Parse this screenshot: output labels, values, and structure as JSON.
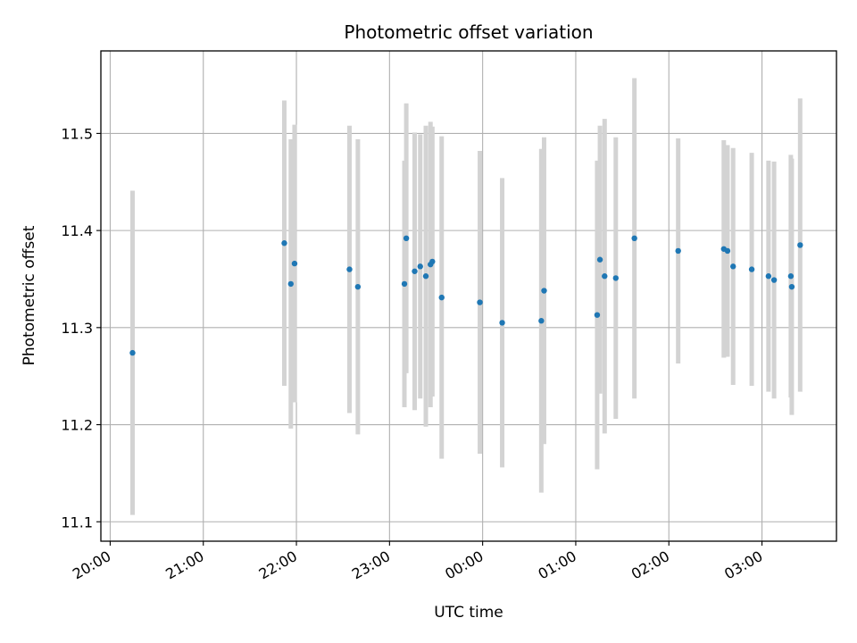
{
  "chart_data": {
    "type": "scatter",
    "title": "Photometric offset variation",
    "xlabel": "UTC time",
    "ylabel": "Photometric offset",
    "x_unit": "hours after 20:00 UTC",
    "xlim": [
      -0.1,
      7.8
    ],
    "ylim": [
      11.08,
      11.585
    ],
    "x_ticks": [
      {
        "value": 0,
        "label": "20:00"
      },
      {
        "value": 1,
        "label": "21:00"
      },
      {
        "value": 2,
        "label": "22:00"
      },
      {
        "value": 3,
        "label": "23:00"
      },
      {
        "value": 4,
        "label": "00:00"
      },
      {
        "value": 5,
        "label": "01:00"
      },
      {
        "value": 6,
        "label": "02:00"
      },
      {
        "value": 7,
        "label": "03:00"
      }
    ],
    "y_ticks": [
      {
        "value": 11.1,
        "label": "11.1"
      },
      {
        "value": 11.2,
        "label": "11.2"
      },
      {
        "value": 11.3,
        "label": "11.3"
      },
      {
        "value": 11.4,
        "label": "11.4"
      },
      {
        "value": 11.5,
        "label": "11.5"
      }
    ],
    "grid": true,
    "marker_color": "#1f77b4",
    "errorbar_color": "#d3d3d3",
    "points": [
      {
        "x": 0.24,
        "y": 11.274,
        "err": 0.167
      },
      {
        "x": 1.87,
        "y": 11.387,
        "err": 0.147
      },
      {
        "x": 1.94,
        "y": 11.345,
        "err": 0.149
      },
      {
        "x": 1.98,
        "y": 11.366,
        "err": 0.143
      },
      {
        "x": 2.57,
        "y": 11.36,
        "err": 0.148
      },
      {
        "x": 2.66,
        "y": 11.342,
        "err": 0.152
      },
      {
        "x": 3.16,
        "y": 11.345,
        "err": 0.127
      },
      {
        "x": 3.18,
        "y": 11.392,
        "err": 0.139
      },
      {
        "x": 3.27,
        "y": 11.358,
        "err": 0.143
      },
      {
        "x": 3.33,
        "y": 11.363,
        "err": 0.136
      },
      {
        "x": 3.39,
        "y": 11.353,
        "err": 0.155
      },
      {
        "x": 3.44,
        "y": 11.365,
        "err": 0.147
      },
      {
        "x": 3.46,
        "y": 11.368,
        "err": 0.139
      },
      {
        "x": 3.56,
        "y": 11.331,
        "err": 0.166
      },
      {
        "x": 3.97,
        "y": 11.326,
        "err": 0.156
      },
      {
        "x": 4.21,
        "y": 11.305,
        "err": 0.149
      },
      {
        "x": 4.63,
        "y": 11.307,
        "err": 0.177
      },
      {
        "x": 4.66,
        "y": 11.338,
        "err": 0.158
      },
      {
        "x": 5.23,
        "y": 11.313,
        "err": 0.159
      },
      {
        "x": 5.26,
        "y": 11.37,
        "err": 0.138
      },
      {
        "x": 5.31,
        "y": 11.353,
        "err": 0.162
      },
      {
        "x": 5.43,
        "y": 11.351,
        "err": 0.145
      },
      {
        "x": 5.63,
        "y": 11.392,
        "err": 0.165
      },
      {
        "x": 6.1,
        "y": 11.379,
        "err": 0.116
      },
      {
        "x": 6.59,
        "y": 11.381,
        "err": 0.112
      },
      {
        "x": 6.63,
        "y": 11.379,
        "err": 0.109
      },
      {
        "x": 6.69,
        "y": 11.363,
        "err": 0.122
      },
      {
        "x": 6.89,
        "y": 11.36,
        "err": 0.12
      },
      {
        "x": 7.07,
        "y": 11.353,
        "err": 0.119
      },
      {
        "x": 7.13,
        "y": 11.349,
        "err": 0.122
      },
      {
        "x": 7.31,
        "y": 11.353,
        "err": 0.125
      },
      {
        "x": 7.32,
        "y": 11.342,
        "err": 0.132
      },
      {
        "x": 7.41,
        "y": 11.385,
        "err": 0.151
      }
    ]
  }
}
